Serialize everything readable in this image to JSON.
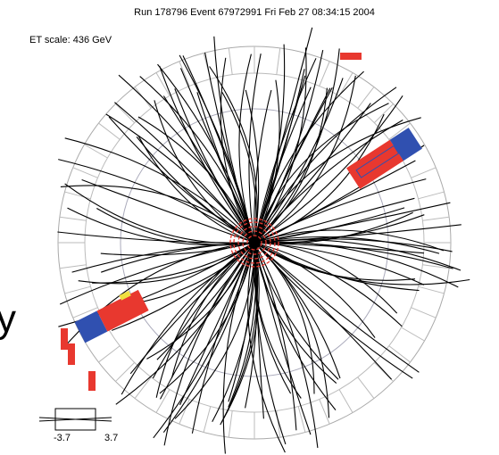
{
  "header": {
    "title": "Run 178796 Event 67972991 Fri Feb 27 08:34:15 2004",
    "et_scale": "ET scale: 436 GeV"
  },
  "legend": {
    "min_label": "-3.7",
    "max_label": "3.7"
  },
  "side_label": "y"
}
